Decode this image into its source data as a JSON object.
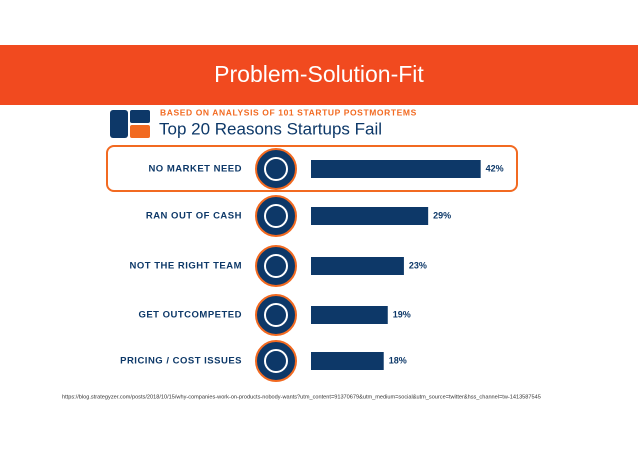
{
  "header": {
    "title": "Problem-Solution-Fit"
  },
  "chart_data": {
    "type": "bar",
    "orientation": "horizontal",
    "subtitle": "BASED ON ANALYSIS OF 101 STARTUP POSTMORTEMS",
    "title": "Top 20 Reasons Startups Fail",
    "categories": [
      "NO MARKET NEED",
      "RAN OUT OF CASH",
      "NOT THE RIGHT TEAM",
      "GET OUTCOMPETED",
      "PRICING / COST ISSUES"
    ],
    "values": [
      42,
      29,
      23,
      19,
      18
    ],
    "value_labels": [
      "42%",
      "29%",
      "23%",
      "19%",
      "18%"
    ],
    "color": "#0d3868",
    "xlim": [
      0,
      50
    ]
  },
  "footer": {
    "source": "https://blog.strategyzer.com/posts/2018/10/15/why-companies-work-on-products-nobody-wants?utm_content=91370679&utm_medium=social&utm_source=twitter&hss_channel=tw-1413587545"
  }
}
